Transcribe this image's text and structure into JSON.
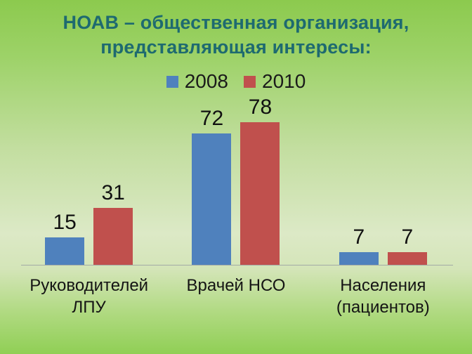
{
  "title_lines": [
    "НОАВ – общественная организация,",
    "представляющая интересы:"
  ],
  "colors": {
    "title": "#1E6A70",
    "series_2008": "#4F81BD",
    "series_2010": "#C0504D",
    "axis_line": "#A3AAA6",
    "label_text": "#111111",
    "background_top": "#8CCA4E",
    "background_middle": "#DCE9C6",
    "background_bottom": "#90CF55"
  },
  "chart_data": {
    "type": "bar",
    "title": "НОАВ – общественная организация, представляющая интересы:",
    "categories": [
      "Руководителей\nЛПУ",
      "Врачей НСО",
      "Населения\n(пациентов)"
    ],
    "series": [
      {
        "name": "2008",
        "color": "#4F81BD",
        "values": [
          15,
          72,
          7
        ]
      },
      {
        "name": "2010",
        "color": "#C0504D",
        "values": [
          31,
          78,
          7
        ]
      }
    ],
    "value_labels": true,
    "legend_position": "top",
    "xlabel": "",
    "ylabel": "",
    "ylim": [
      0,
      90
    ],
    "grid": false,
    "y_axis_visible": false
  }
}
